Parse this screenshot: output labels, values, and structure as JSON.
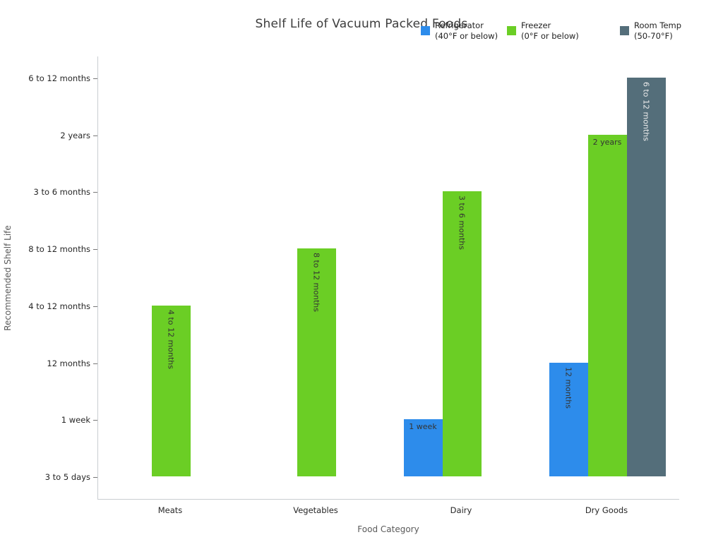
{
  "chart_data": {
    "type": "bar",
    "title": "Shelf Life of Vacuum Packed Foods",
    "xlabel": "Food Category",
    "ylabel": "Recommended Shelf Life",
    "categories": [
      "Meats",
      "Vegetables",
      "Dairy",
      "Dry Goods"
    ],
    "y_tick_labels": [
      "3 to 5 days",
      "1 week",
      "12 months",
      "4 to 12 months",
      "8 to 12 months",
      "3 to 6 months",
      "2 years",
      "6 to 12 months"
    ],
    "grid": false,
    "legend_position": "top",
    "series": [
      {
        "name": "Refrigerator",
        "subtitle": "(40°F or below)",
        "color": "#2d8ceb",
        "label_color": "#333333",
        "values": [
          null,
          null,
          1,
          2
        ],
        "labels": [
          null,
          null,
          "1 week",
          "12 months"
        ]
      },
      {
        "name": "Freezer",
        "subtitle": "(0°F or below)",
        "color": "#6bce25",
        "label_color": "#333333",
        "values": [
          3,
          4,
          5,
          6
        ],
        "labels": [
          "4 to 12 months",
          "8 to 12 months",
          "3 to 6 months",
          "2 years"
        ]
      },
      {
        "name": "Room Temp",
        "subtitle": "(50-70°F)",
        "color": "#546e7a",
        "label_color": "#ececec",
        "values": [
          null,
          null,
          null,
          7
        ],
        "labels": [
          null,
          null,
          null,
          "6 to 12 months"
        ]
      }
    ]
  }
}
